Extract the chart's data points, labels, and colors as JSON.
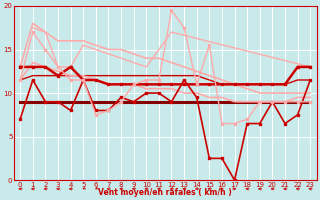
{
  "xlabel": "Vent moyen/en rafales ( km/h )",
  "xlim": [
    -0.5,
    23.5
  ],
  "ylim": [
    0,
    20
  ],
  "yticks": [
    0,
    5,
    10,
    15,
    20
  ],
  "xticks": [
    0,
    1,
    2,
    3,
    4,
    5,
    6,
    7,
    8,
    9,
    10,
    11,
    12,
    13,
    14,
    15,
    16,
    17,
    18,
    19,
    20,
    21,
    22,
    23
  ],
  "bg_color": "#c8eaea",
  "grid_color": "#ffffff",
  "arrow_color": "#cc0000",
  "series": [
    {
      "x": [
        0,
        1,
        2,
        3,
        4,
        5,
        6,
        7,
        8,
        9,
        10,
        11,
        12,
        13,
        14,
        15,
        16,
        17,
        18,
        19,
        20,
        21,
        22,
        23
      ],
      "y": [
        7,
        11.5,
        9,
        9,
        8,
        11.5,
        8,
        8,
        9.5,
        9,
        10,
        10,
        9,
        11.5,
        9.5,
        2.5,
        2.5,
        0,
        6.5,
        6.5,
        9,
        6.5,
        7.5,
        11.5
      ],
      "color": "#cc0000",
      "lw": 1.2,
      "marker": "s",
      "ms": 2.0
    },
    {
      "x": [
        0,
        1,
        2,
        3,
        4,
        5,
        6,
        7,
        8,
        9,
        10,
        11,
        12,
        13,
        14,
        15,
        16,
        17,
        18,
        19,
        20,
        21,
        22,
        23
      ],
      "y": [
        9,
        9,
        9,
        9,
        9,
        9,
        9,
        9,
        9,
        9,
        9,
        9,
        9,
        9,
        9,
        9,
        9,
        9,
        9,
        9,
        9,
        9,
        9,
        9
      ],
      "color": "#880000",
      "lw": 2.2,
      "marker": null,
      "ms": 0
    },
    {
      "x": [
        0,
        1,
        2,
        3,
        4,
        5,
        6,
        7,
        8,
        9,
        10,
        11,
        12,
        13,
        14,
        15,
        16,
        17,
        18,
        19,
        20,
        21,
        22,
        23
      ],
      "y": [
        13,
        13,
        13,
        12,
        13,
        11.5,
        11.5,
        11,
        11,
        11,
        11,
        11,
        11,
        11,
        11,
        11,
        11,
        11,
        11,
        11,
        11,
        11,
        13,
        13
      ],
      "color": "#cc0000",
      "lw": 1.8,
      "marker": "s",
      "ms": 2.0
    },
    {
      "x": [
        0,
        1,
        2,
        3,
        4,
        5,
        6,
        7,
        8,
        9,
        10,
        11,
        12,
        13,
        14,
        15,
        16,
        17,
        18,
        19,
        20,
        21,
        22,
        23
      ],
      "y": [
        11.5,
        12,
        12,
        12,
        12,
        12,
        12,
        12,
        12,
        12,
        12,
        12,
        12,
        12,
        12,
        11.5,
        11,
        11,
        11,
        11,
        11,
        11,
        11.5,
        11.5
      ],
      "color": "#cc0000",
      "lw": 1.0,
      "marker": null,
      "ms": 0
    },
    {
      "x": [
        0,
        1,
        2,
        3,
        4,
        5,
        6,
        7,
        8,
        9,
        10,
        11,
        12,
        13,
        14,
        15,
        16,
        17,
        18,
        19,
        20,
        21,
        22,
        23
      ],
      "y": [
        11.5,
        17,
        15,
        13,
        11.5,
        11.5,
        7.5,
        8,
        9,
        11,
        11.5,
        11.5,
        19.5,
        17.5,
        11,
        15.5,
        6.5,
        6.5,
        7,
        9,
        9,
        9,
        9,
        9
      ],
      "color": "#ffaaaa",
      "lw": 1.0,
      "marker": "s",
      "ms": 2.0
    },
    {
      "x": [
        1,
        2,
        3,
        4,
        5,
        10,
        12,
        23
      ],
      "y": [
        17.5,
        17,
        13,
        13,
        15.5,
        13,
        17,
        13
      ],
      "color": "#ffaaaa",
      "lw": 1.0,
      "marker": null,
      "ms": 0
    },
    {
      "x": [
        0,
        1,
        2,
        3,
        4,
        5,
        6,
        7,
        8,
        9,
        10,
        11,
        12,
        13,
        14,
        15,
        16,
        17,
        18,
        19,
        20,
        21,
        22,
        23
      ],
      "y": [
        13,
        18,
        17,
        16,
        16,
        16,
        15.5,
        15,
        15,
        14.5,
        14,
        14,
        13.5,
        13,
        12.5,
        12,
        11.5,
        11,
        10.5,
        10,
        10,
        10,
        10,
        10
      ],
      "color": "#ffaaaa",
      "lw": 1.2,
      "marker": null,
      "ms": 0
    },
    {
      "x": [
        0,
        1,
        2,
        3,
        4,
        5,
        6,
        7,
        8,
        9,
        10,
        11,
        12,
        13,
        14,
        15,
        16,
        17,
        18,
        19,
        20,
        21,
        22,
        23
      ],
      "y": [
        11.5,
        13.5,
        13,
        12.5,
        12,
        12,
        11.5,
        11,
        11,
        11,
        10.5,
        10.5,
        10.5,
        10,
        10,
        9.5,
        9.5,
        9,
        9,
        9,
        9,
        9,
        9.5,
        9.5
      ],
      "color": "#ffaaaa",
      "lw": 1.2,
      "marker": null,
      "ms": 0
    }
  ],
  "wind_arrows": {
    "x": [
      0,
      1,
      2,
      3,
      4,
      5,
      6,
      7,
      8,
      9,
      10,
      11,
      12,
      13,
      14,
      15,
      16,
      17,
      18,
      19,
      20,
      21,
      22,
      23
    ],
    "dx": [
      -1,
      -1,
      -1,
      -1,
      -1,
      -0.7,
      -0.7,
      -1,
      -1,
      -1,
      -1,
      -1,
      -1,
      -1,
      -1,
      -1,
      1,
      1,
      -1,
      -1,
      -1,
      -1,
      -1,
      -1
    ],
    "dy": [
      0,
      0,
      0,
      0,
      0,
      -0.5,
      -0.5,
      0,
      0,
      0,
      0,
      0,
      0,
      0,
      0,
      0,
      0,
      0,
      0,
      0,
      0,
      0,
      0,
      0
    ]
  }
}
